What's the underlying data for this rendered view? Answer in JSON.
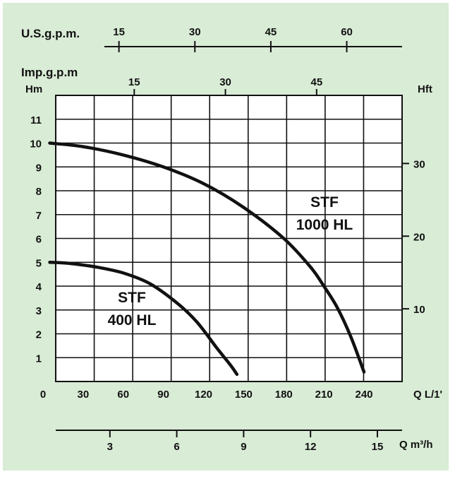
{
  "chart_data": {
    "type": "line",
    "background": "#d9ecd6",
    "plot_background": "#ffffff",
    "line_color": "#111111",
    "grid": true,
    "x": {
      "label": "Q L/1'",
      "min": 0,
      "max": 250,
      "ticks": [
        "0",
        "30",
        "60",
        "90",
        "120",
        "150",
        "180",
        "210",
        "240"
      ]
    },
    "y": {
      "label": "Hm",
      "min": 0,
      "max": 12,
      "ticks": [
        "1",
        "2",
        "3",
        "4",
        "5",
        "6",
        "7",
        "8",
        "9",
        "10",
        "11"
      ]
    },
    "y_right": {
      "label": "Hft",
      "ticks": [
        {
          "label": "10",
          "value": 10
        },
        {
          "label": "20",
          "value": 20
        },
        {
          "label": "30",
          "value": 30
        }
      ]
    },
    "x_top_usgpm": {
      "label": "U.S.g.p.m.",
      "ticks": [
        {
          "label": "15",
          "value": 15
        },
        {
          "label": "30",
          "value": 30
        },
        {
          "label": "45",
          "value": 45
        },
        {
          "label": "60",
          "value": 60
        }
      ]
    },
    "x_top_impgpm": {
      "label": "Imp.g.p.m",
      "ticks": [
        {
          "label": "15",
          "value": 15
        },
        {
          "label": "30",
          "value": 30
        },
        {
          "label": "45",
          "value": 45
        }
      ]
    },
    "x_bottom_m3h": {
      "label": "Q m³/h",
      "ticks": [
        {
          "label": "3",
          "value": 3
        },
        {
          "label": "6",
          "value": 6
        },
        {
          "label": "9",
          "value": 9
        },
        {
          "label": "12",
          "value": 12
        },
        {
          "label": "15",
          "value": 15
        }
      ]
    },
    "series": [
      {
        "name": "STF 400 HL",
        "name_lines": [
          "STF",
          "400 HL"
        ],
        "x": [
          5,
          20,
          40,
          60,
          80,
          100,
          115,
          130,
          140,
          145
        ],
        "y": [
          5.0,
          4.95,
          4.8,
          4.55,
          4.1,
          3.3,
          2.5,
          1.4,
          0.7,
          0.3
        ]
      },
      {
        "name": "STF 1000 HL",
        "name_lines": [
          "STF",
          "1000 HL"
        ],
        "x": [
          5,
          30,
          60,
          90,
          120,
          150,
          180,
          200,
          210,
          220,
          230,
          240
        ],
        "y": [
          10.0,
          9.85,
          9.5,
          9.0,
          8.3,
          7.3,
          6.0,
          4.8,
          4.0,
          3.1,
          1.9,
          0.4
        ]
      }
    ]
  }
}
